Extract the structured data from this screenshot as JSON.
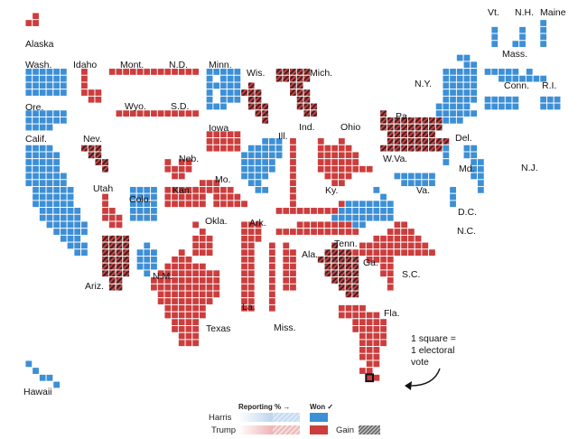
{
  "colors": {
    "dem": "#3d8fd6",
    "rep": "#cc3d3d",
    "gain_hatch": "#3a2323",
    "grid_line": "#ffffff"
  },
  "map": {
    "type": "electoral-cartogram",
    "unit_note": [
      "1 square =",
      "1 electoral",
      "vote"
    ],
    "states": [
      {
        "name": "Alaska",
        "winner": "rep",
        "gain": false
      },
      {
        "name": "Hawaii",
        "winner": "dem",
        "gain": false
      },
      {
        "name": "Wash.",
        "winner": "dem",
        "gain": false
      },
      {
        "name": "Ore.",
        "winner": "dem",
        "gain": false
      },
      {
        "name": "Calif.",
        "winner": "dem",
        "gain": false
      },
      {
        "name": "Idaho",
        "winner": "rep",
        "gain": false
      },
      {
        "name": "Nev.",
        "winner": "rep",
        "gain": true
      },
      {
        "name": "Utah",
        "winner": "rep",
        "gain": false
      },
      {
        "name": "Ariz.",
        "winner": "rep",
        "gain": true
      },
      {
        "name": "Mont.",
        "winner": "rep",
        "gain": false
      },
      {
        "name": "Wyo.",
        "winner": "rep",
        "gain": false
      },
      {
        "name": "Colo.",
        "winner": "dem",
        "gain": false
      },
      {
        "name": "N.M.",
        "winner": "dem",
        "gain": false
      },
      {
        "name": "N.D.",
        "winner": "rep",
        "gain": false
      },
      {
        "name": "S.D.",
        "winner": "rep",
        "gain": false
      },
      {
        "name": "Neb.",
        "winner": "rep",
        "gain": false
      },
      {
        "name": "Kan.",
        "winner": "rep",
        "gain": false
      },
      {
        "name": "Okla.",
        "winner": "rep",
        "gain": false
      },
      {
        "name": "Texas",
        "winner": "rep",
        "gain": false
      },
      {
        "name": "Minn.",
        "winner": "dem",
        "gain": false
      },
      {
        "name": "Iowa",
        "winner": "rep",
        "gain": false
      },
      {
        "name": "Mo.",
        "winner": "rep",
        "gain": false
      },
      {
        "name": "Ark.",
        "winner": "rep",
        "gain": false
      },
      {
        "name": "La.",
        "winner": "rep",
        "gain": false
      },
      {
        "name": "Wis.",
        "winner": "rep",
        "gain": true
      },
      {
        "name": "Ill.",
        "winner": "dem",
        "gain": false
      },
      {
        "name": "Mich.",
        "winner": "rep",
        "gain": true
      },
      {
        "name": "Ind.",
        "winner": "rep",
        "gain": false
      },
      {
        "name": "Ohio",
        "winner": "rep",
        "gain": false
      },
      {
        "name": "Ky.",
        "winner": "rep",
        "gain": false
      },
      {
        "name": "Tenn.",
        "winner": "rep",
        "gain": false
      },
      {
        "name": "Miss.",
        "winner": "rep",
        "gain": false
      },
      {
        "name": "Ala.",
        "winner": "rep",
        "gain": false
      },
      {
        "name": "Ga.",
        "winner": "rep",
        "gain": true
      },
      {
        "name": "Fla.",
        "winner": "rep",
        "gain": false
      },
      {
        "name": "S.C.",
        "winner": "rep",
        "gain": false
      },
      {
        "name": "N.C.",
        "winner": "rep",
        "gain": false
      },
      {
        "name": "Va.",
        "winner": "dem",
        "gain": false
      },
      {
        "name": "W.Va.",
        "winner": "rep",
        "gain": false
      },
      {
        "name": "Pa.",
        "winner": "rep",
        "gain": true
      },
      {
        "name": "Md.",
        "winner": "dem",
        "gain": false
      },
      {
        "name": "Del.",
        "winner": "dem",
        "gain": false
      },
      {
        "name": "D.C.",
        "winner": "dem",
        "gain": false
      },
      {
        "name": "N.J.",
        "winner": "dem",
        "gain": false
      },
      {
        "name": "N.Y.",
        "winner": "dem",
        "gain": false
      },
      {
        "name": "Conn.",
        "winner": "dem",
        "gain": false
      },
      {
        "name": "R.I.",
        "winner": "dem",
        "gain": false
      },
      {
        "name": "Mass.",
        "winner": "dem",
        "gain": false
      },
      {
        "name": "Vt.",
        "winner": "dem",
        "gain": false
      },
      {
        "name": "N.H.",
        "winner": "dem",
        "gain": false
      },
      {
        "name": "Maine",
        "winner": "dem",
        "gain": false
      }
    ]
  },
  "legend": {
    "reporting_header": "Reporting % →",
    "won_header": "Won ✓",
    "harris_label": "Harris",
    "trump_label": "Trump",
    "gain_label": "Gain"
  }
}
